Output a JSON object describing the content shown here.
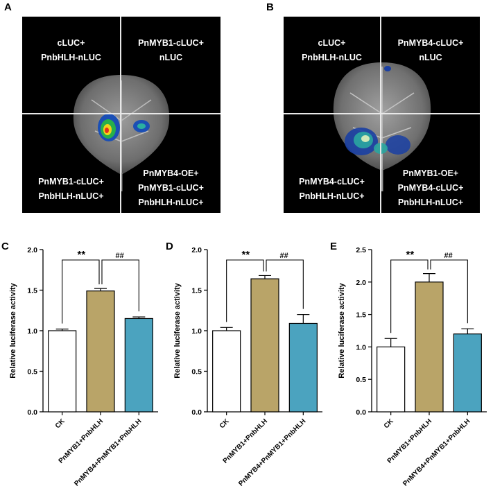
{
  "panels": {
    "A": {
      "letter": "A",
      "q1": [
        "cLUC+",
        "PnbHLH-nLUC"
      ],
      "q2": [
        "PnMYB1-cLUC+",
        "nLUC"
      ],
      "q3": [
        "PnMYB1-cLUC+",
        "PnbHLH-nLUC+"
      ],
      "q4": [
        "PnMYB4-OE+",
        "PnMYB1-cLUC+",
        "PnbHLH-nLUC+"
      ]
    },
    "B": {
      "letter": "B",
      "q1": [
        "cLUC+",
        "PnbHLH-nLUC"
      ],
      "q2": [
        "PnMYB4-cLUC+",
        "nLUC"
      ],
      "q3": [
        "PnMYB4-cLUC+",
        "PnbHLH-nLUC+"
      ],
      "q4": [
        "PnMYB1-OE+",
        "PnMYB4-cLUC+",
        "PnbHLH-nLUC+"
      ]
    }
  },
  "colors": {
    "bar_ck": "#ffffff",
    "bar_myb1": "#b9a468",
    "bar_myb4": "#4ba3bf"
  },
  "chart_data": [
    {
      "type": "bar",
      "letter": "C",
      "ylabel": "Relative luciferase activity",
      "categories": [
        "CK",
        "PnMYB1+PnbHLH",
        "PnMYB4+PnMYB1+PnbHLH"
      ],
      "values": [
        1.0,
        1.49,
        1.15
      ],
      "errors": [
        0.02,
        0.03,
        0.02
      ],
      "ylim": [
        0,
        2.0
      ],
      "yticks": [
        0,
        0.5,
        1.0,
        1.5,
        2.0
      ],
      "tick_labels": [
        "0.0",
        "0.5",
        "1.0",
        "1.5",
        "2.0"
      ],
      "sig1": "**",
      "sig2": "##"
    },
    {
      "type": "bar",
      "letter": "D",
      "ylabel": "Relative luciferase activity",
      "categories": [
        "CK",
        "PnMYB1+PnbHLH",
        "PnMYB4+PnMYB1+PnbHLH"
      ],
      "values": [
        1.0,
        1.64,
        1.09
      ],
      "errors": [
        0.04,
        0.04,
        0.11
      ],
      "ylim": [
        0,
        2.0
      ],
      "yticks": [
        0,
        0.5,
        1.0,
        1.5,
        2.0
      ],
      "tick_labels": [
        "0.0",
        "0.5",
        "1.0",
        "1.5",
        "2.0"
      ],
      "sig1": "**",
      "sig2": "##"
    },
    {
      "type": "bar",
      "letter": "E",
      "ylabel": "Relative luciferase activity",
      "categories": [
        "CK",
        "PnMYB1+PnbHLH",
        "PnMYB4+PnMYB1+PnbHLH"
      ],
      "values": [
        1.0,
        2.0,
        1.2
      ],
      "errors": [
        0.13,
        0.13,
        0.08
      ],
      "ylim": [
        0,
        2.5
      ],
      "yticks": [
        0,
        0.5,
        1.0,
        1.5,
        2.0,
        2.5
      ],
      "tick_labels": [
        "0.0",
        "0.5",
        "1.0",
        "1.5",
        "2.0",
        "2.5"
      ],
      "sig1": "**",
      "sig2": "##"
    }
  ]
}
